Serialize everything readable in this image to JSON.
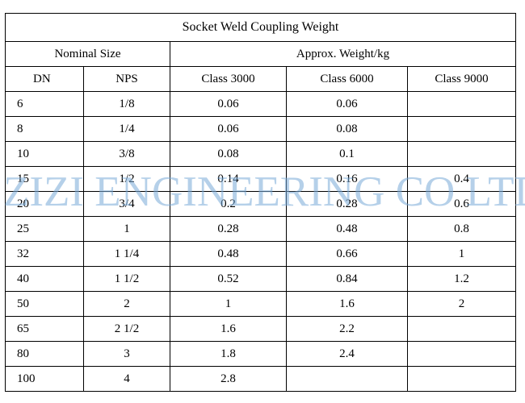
{
  "table": {
    "title": "Socket Weld Coupling Weight",
    "group_headers": {
      "nominal_size": "Nominal Size",
      "weight": "Approx. Weight/kg"
    },
    "columns": [
      "DN",
      "NPS",
      "Class 3000",
      "Class 6000",
      "Class 9000"
    ],
    "rows": [
      [
        "6",
        "1/8",
        "0.06",
        "0.06",
        ""
      ],
      [
        "8",
        "1/4",
        "0.06",
        "0.08",
        ""
      ],
      [
        "10",
        "3/8",
        "0.08",
        "0.1",
        ""
      ],
      [
        "15",
        "1/2",
        "0.14",
        "0.16",
        "0.4"
      ],
      [
        "20",
        "3/4",
        "0.2",
        "0.28",
        "0.6"
      ],
      [
        "25",
        "1",
        "0.28",
        "0.48",
        "0.8"
      ],
      [
        "32",
        "1 1/4",
        "0.48",
        "0.66",
        "1"
      ],
      [
        "40",
        "1 1/2",
        "0.52",
        "0.84",
        "1.2"
      ],
      [
        "50",
        "2",
        "1",
        "1.6",
        "2"
      ],
      [
        "65",
        "2 1/2",
        "1.6",
        "2.2",
        ""
      ],
      [
        "80",
        "3",
        "1.8",
        "2.4",
        ""
      ],
      [
        "100",
        "4",
        "2.8",
        "",
        ""
      ]
    ]
  },
  "watermark": {
    "text": "ZIZI ENGINEERING CO LTD",
    "color": "#78aad7"
  }
}
